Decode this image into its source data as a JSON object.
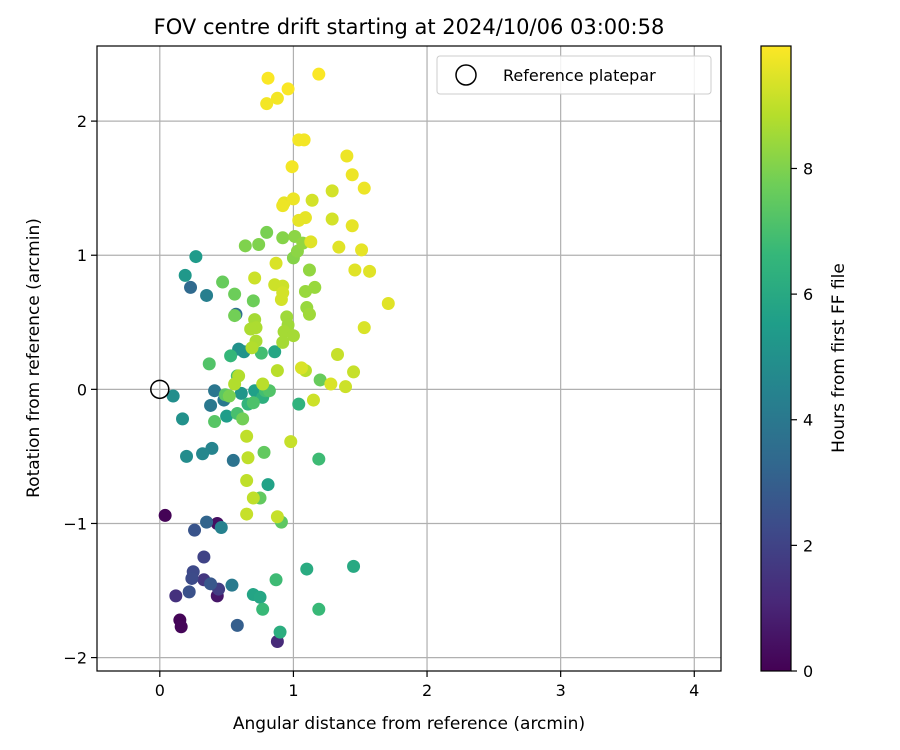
{
  "chart_data": {
    "type": "scatter",
    "title": "FOV centre drift starting at 2024/10/06 03:00:58",
    "xlabel": "Angular distance from reference (arcmin)",
    "ylabel": "Rotation from reference (arcmin)",
    "xlim": [
      -0.47,
      4.2
    ],
    "ylim": [
      -2.1,
      2.56
    ],
    "xticks": [
      0,
      1,
      2,
      3,
      4
    ],
    "yticks": [
      -2,
      -1,
      0,
      1,
      2
    ],
    "grid": true,
    "legend": {
      "placement": "top-right",
      "entries": [
        "Reference platepar"
      ]
    },
    "reference_point": {
      "x": 0,
      "y": 0,
      "marker": "open-circle"
    },
    "colorbar": {
      "label": "Hours from first FF file",
      "range": [
        0,
        9.95
      ],
      "ticks": [
        0,
        2,
        4,
        6,
        8
      ],
      "colormap": "viridis"
    },
    "colors": {
      "viridis": [
        "#440154",
        "#482878",
        "#3e4989",
        "#31688e",
        "#26828e",
        "#1f9e89",
        "#35b779",
        "#6ece58",
        "#b5de2b",
        "#fde725"
      ],
      "reference_edge": "#000000",
      "grid": "#b0b0b0"
    },
    "points": [
      {
        "x": 0.04,
        "y": -0.94,
        "t": 0.05
      },
      {
        "x": 0.15,
        "y": -1.72,
        "t": 0.1
      },
      {
        "x": 0.16,
        "y": -1.77,
        "t": 0.15
      },
      {
        "x": 0.43,
        "y": -1.0,
        "t": 0.4
      },
      {
        "x": 0.43,
        "y": -1.54,
        "t": 0.6
      },
      {
        "x": 0.88,
        "y": -1.88,
        "t": 1.2
      },
      {
        "x": 0.12,
        "y": -1.54,
        "t": 1.4
      },
      {
        "x": 0.33,
        "y": -1.42,
        "t": 1.6
      },
      {
        "x": 0.44,
        "y": -1.49,
        "t": 1.8
      },
      {
        "x": 0.33,
        "y": -1.25,
        "t": 2.0
      },
      {
        "x": 0.25,
        "y": -1.36,
        "t": 2.2
      },
      {
        "x": 0.24,
        "y": -1.41,
        "t": 2.3
      },
      {
        "x": 0.22,
        "y": -1.51,
        "t": 2.5
      },
      {
        "x": 0.26,
        "y": -1.05,
        "t": 2.6
      },
      {
        "x": 0.38,
        "y": -1.45,
        "t": 2.7
      },
      {
        "x": 0.58,
        "y": -1.76,
        "t": 3.0
      },
      {
        "x": 0.35,
        "y": -0.99,
        "t": 3.2
      },
      {
        "x": 0.23,
        "y": 0.76,
        "t": 3.4
      },
      {
        "x": 0.57,
        "y": 0.56,
        "t": 3.6
      },
      {
        "x": 0.55,
        "y": -0.53,
        "t": 3.8
      },
      {
        "x": 0.41,
        "y": -0.01,
        "t": 3.9
      },
      {
        "x": 0.38,
        "y": -0.12,
        "t": 4.0
      },
      {
        "x": 0.48,
        "y": -0.08,
        "t": 4.0
      },
      {
        "x": 0.54,
        "y": -1.46,
        "t": 4.1
      },
      {
        "x": 0.35,
        "y": 0.7,
        "t": 4.3
      },
      {
        "x": 0.46,
        "y": -1.03,
        "t": 4.4
      },
      {
        "x": 0.39,
        "y": -0.44,
        "t": 4.5
      },
      {
        "x": 0.32,
        "y": -0.48,
        "t": 4.6
      },
      {
        "x": 0.2,
        "y": -0.5,
        "t": 4.8
      },
      {
        "x": 0.1,
        "y": -0.05,
        "t": 4.9
      },
      {
        "x": 0.17,
        "y": -0.22,
        "t": 5.0
      },
      {
        "x": 0.59,
        "y": 0.3,
        "t": 5.0
      },
      {
        "x": 0.63,
        "y": 0.28,
        "t": 5.1
      },
      {
        "x": 0.61,
        "y": -0.03,
        "t": 5.2
      },
      {
        "x": 0.19,
        "y": 0.85,
        "t": 5.3
      },
      {
        "x": 0.27,
        "y": 0.99,
        "t": 5.4
      },
      {
        "x": 0.5,
        "y": -0.2,
        "t": 5.5
      },
      {
        "x": 0.71,
        "y": -0.01,
        "t": 5.6
      },
      {
        "x": 0.81,
        "y": -0.71,
        "t": 5.7
      },
      {
        "x": 0.7,
        "y": -1.53,
        "t": 5.8
      },
      {
        "x": 0.75,
        "y": -1.55,
        "t": 5.9
      },
      {
        "x": 0.86,
        "y": 0.28,
        "t": 5.9
      },
      {
        "x": 1.45,
        "y": -1.32,
        "t": 6.0
      },
      {
        "x": 1.1,
        "y": -1.34,
        "t": 6.1
      },
      {
        "x": 0.9,
        "y": -1.81,
        "t": 6.2
      },
      {
        "x": 0.77,
        "y": -0.06,
        "t": 6.3
      },
      {
        "x": 1.04,
        "y": -0.11,
        "t": 6.4
      },
      {
        "x": 0.66,
        "y": -0.11,
        "t": 6.5
      },
      {
        "x": 0.53,
        "y": 0.25,
        "t": 6.6
      },
      {
        "x": 0.77,
        "y": -1.64,
        "t": 6.7
      },
      {
        "x": 1.19,
        "y": -1.64,
        "t": 6.7
      },
      {
        "x": 0.87,
        "y": -1.42,
        "t": 6.8
      },
      {
        "x": 1.19,
        "y": -0.52,
        "t": 6.8
      },
      {
        "x": 0.79,
        "y": -0.01,
        "t": 6.9
      },
      {
        "x": 0.76,
        "y": 0.27,
        "t": 6.9
      },
      {
        "x": 0.58,
        "y": 0.1,
        "t": 7.0
      },
      {
        "x": 0.58,
        "y": -0.18,
        "t": 7.0
      },
      {
        "x": 0.7,
        "y": -0.1,
        "t": 7.1
      },
      {
        "x": 0.82,
        "y": -0.01,
        "t": 7.2
      },
      {
        "x": 0.37,
        "y": 0.19,
        "t": 7.2
      },
      {
        "x": 0.41,
        "y": -0.24,
        "t": 7.3
      },
      {
        "x": 0.49,
        "y": -0.04,
        "t": 7.4
      },
      {
        "x": 0.91,
        "y": -0.99,
        "t": 7.4
      },
      {
        "x": 0.75,
        "y": -0.81,
        "t": 7.5
      },
      {
        "x": 0.78,
        "y": -0.47,
        "t": 7.5
      },
      {
        "x": 1.2,
        "y": 0.07,
        "t": 7.6
      },
      {
        "x": 0.47,
        "y": 0.8,
        "t": 7.6
      },
      {
        "x": 0.56,
        "y": 0.71,
        "t": 7.7
      },
      {
        "x": 0.7,
        "y": 0.66,
        "t": 7.7
      },
      {
        "x": 0.56,
        "y": 0.55,
        "t": 7.8
      },
      {
        "x": 0.62,
        "y": -0.22,
        "t": 7.8
      },
      {
        "x": 0.52,
        "y": -0.05,
        "t": 7.9
      },
      {
        "x": 0.8,
        "y": 1.17,
        "t": 7.9
      },
      {
        "x": 0.64,
        "y": 1.07,
        "t": 8.0
      },
      {
        "x": 0.74,
        "y": 1.08,
        "t": 8.0
      },
      {
        "x": 0.92,
        "y": 1.13,
        "t": 8.1
      },
      {
        "x": 1.0,
        "y": 0.98,
        "t": 8.1
      },
      {
        "x": 1.03,
        "y": 1.03,
        "t": 8.2
      },
      {
        "x": 1.01,
        "y": 1.14,
        "t": 8.2
      },
      {
        "x": 1.07,
        "y": 1.09,
        "t": 8.3
      },
      {
        "x": 1.12,
        "y": 0.89,
        "t": 8.3
      },
      {
        "x": 1.16,
        "y": 0.76,
        "t": 8.4
      },
      {
        "x": 1.09,
        "y": 0.73,
        "t": 8.4
      },
      {
        "x": 1.1,
        "y": 0.61,
        "t": 8.4
      },
      {
        "x": 1.12,
        "y": 0.56,
        "t": 8.5
      },
      {
        "x": 0.95,
        "y": 0.54,
        "t": 8.5
      },
      {
        "x": 0.96,
        "y": 0.48,
        "t": 8.5
      },
      {
        "x": 0.93,
        "y": 0.43,
        "t": 8.6
      },
      {
        "x": 1.0,
        "y": 0.4,
        "t": 8.6
      },
      {
        "x": 0.92,
        "y": 0.35,
        "t": 8.6
      },
      {
        "x": 0.71,
        "y": 0.52,
        "t": 8.6
      },
      {
        "x": 0.72,
        "y": 0.46,
        "t": 8.7
      },
      {
        "x": 0.68,
        "y": 0.45,
        "t": 8.7
      },
      {
        "x": 0.72,
        "y": 0.36,
        "t": 8.7
      },
      {
        "x": 0.69,
        "y": 0.31,
        "t": 8.8
      },
      {
        "x": 0.59,
        "y": 0.1,
        "t": 8.8
      },
      {
        "x": 0.56,
        "y": 0.04,
        "t": 8.8
      },
      {
        "x": 0.77,
        "y": 0.04,
        "t": 8.9
      },
      {
        "x": 0.88,
        "y": 0.14,
        "t": 8.9
      },
      {
        "x": 1.09,
        "y": 0.14,
        "t": 8.9
      },
      {
        "x": 0.65,
        "y": -0.35,
        "t": 9.0
      },
      {
        "x": 0.66,
        "y": -0.51,
        "t": 9.0
      },
      {
        "x": 0.65,
        "y": -0.68,
        "t": 9.0
      },
      {
        "x": 0.7,
        "y": -0.81,
        "t": 9.0
      },
      {
        "x": 0.65,
        "y": -0.93,
        "t": 9.1
      },
      {
        "x": 0.88,
        "y": -0.95,
        "t": 9.1
      },
      {
        "x": 0.98,
        "y": -0.39,
        "t": 9.1
      },
      {
        "x": 1.33,
        "y": 0.26,
        "t": 9.1
      },
      {
        "x": 1.45,
        "y": 0.13,
        "t": 9.1
      },
      {
        "x": 1.39,
        "y": 0.02,
        "t": 9.2
      },
      {
        "x": 1.15,
        "y": -0.08,
        "t": 9.2
      },
      {
        "x": 0.71,
        "y": 0.83,
        "t": 9.2
      },
      {
        "x": 0.86,
        "y": 0.78,
        "t": 9.2
      },
      {
        "x": 0.92,
        "y": 0.77,
        "t": 9.2
      },
      {
        "x": 0.92,
        "y": 0.72,
        "t": 9.3
      },
      {
        "x": 0.91,
        "y": 0.67,
        "t": 9.3
      },
      {
        "x": 1.14,
        "y": 1.41,
        "t": 9.3
      },
      {
        "x": 1.29,
        "y": 1.48,
        "t": 9.3
      },
      {
        "x": 1.29,
        "y": 1.27,
        "t": 9.3
      },
      {
        "x": 1.53,
        "y": 0.46,
        "t": 9.4
      },
      {
        "x": 1.06,
        "y": 0.16,
        "t": 9.4
      },
      {
        "x": 1.28,
        "y": 0.04,
        "t": 9.4
      },
      {
        "x": 0.87,
        "y": 0.94,
        "t": 9.4
      },
      {
        "x": 1.34,
        "y": 1.06,
        "t": 9.5
      },
      {
        "x": 1.13,
        "y": 1.1,
        "t": 9.5
      },
      {
        "x": 1.57,
        "y": 0.88,
        "t": 9.5
      },
      {
        "x": 1.46,
        "y": 0.89,
        "t": 9.5
      },
      {
        "x": 1.71,
        "y": 0.64,
        "t": 9.5
      },
      {
        "x": 1.51,
        "y": 1.04,
        "t": 9.6
      },
      {
        "x": 1.44,
        "y": 1.22,
        "t": 9.6
      },
      {
        "x": 1.09,
        "y": 1.28,
        "t": 9.6
      },
      {
        "x": 1.04,
        "y": 1.26,
        "t": 9.6
      },
      {
        "x": 0.93,
        "y": 1.39,
        "t": 9.6
      },
      {
        "x": 0.92,
        "y": 1.37,
        "t": 9.7
      },
      {
        "x": 1.0,
        "y": 1.42,
        "t": 9.7
      },
      {
        "x": 1.44,
        "y": 1.6,
        "t": 9.7
      },
      {
        "x": 1.53,
        "y": 1.5,
        "t": 9.7
      },
      {
        "x": 1.4,
        "y": 1.74,
        "t": 9.7
      },
      {
        "x": 0.99,
        "y": 1.66,
        "t": 9.8
      },
      {
        "x": 1.04,
        "y": 1.86,
        "t": 9.8
      },
      {
        "x": 1.08,
        "y": 1.86,
        "t": 9.8
      },
      {
        "x": 0.8,
        "y": 2.13,
        "t": 9.8
      },
      {
        "x": 0.88,
        "y": 2.17,
        "t": 9.8
      },
      {
        "x": 0.96,
        "y": 2.24,
        "t": 9.9
      },
      {
        "x": 0.81,
        "y": 2.32,
        "t": 9.9
      },
      {
        "x": 1.19,
        "y": 2.35,
        "t": 9.9
      }
    ]
  }
}
